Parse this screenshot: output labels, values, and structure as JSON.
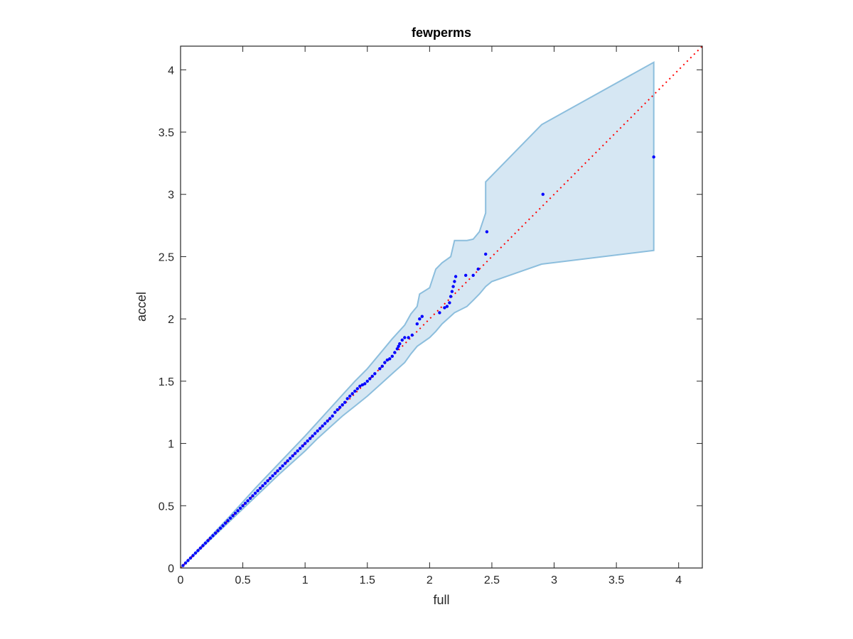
{
  "chart_data": {
    "type": "scatter",
    "title": "fewperms",
    "xlabel": "full",
    "ylabel": "accel",
    "xlim": [
      0,
      4.19
    ],
    "ylim": [
      0,
      4.19
    ],
    "xticks": [
      0,
      0.5,
      1,
      1.5,
      2,
      2.5,
      3,
      3.5,
      4
    ],
    "yticks": [
      0,
      0.5,
      1,
      1.5,
      2,
      2.5,
      3,
      3.5,
      4
    ],
    "xtick_labels": [
      "0",
      "0.5",
      "1",
      "1.5",
      "2",
      "2.5",
      "3",
      "3.5",
      "4"
    ],
    "ytick_labels": [
      "0",
      "0.5",
      "1",
      "1.5",
      "2",
      "2.5",
      "3",
      "3.5",
      "4"
    ],
    "grid": false,
    "reference_line": {
      "style": "dotted",
      "color": "#ff0000",
      "from": [
        0,
        0
      ],
      "to": [
        4.19,
        4.19
      ]
    },
    "points_color": "#0000ff",
    "band_fill": "#d6e7f3",
    "band_edge": "#8cbedd",
    "points": [
      [
        0.02,
        0.02
      ],
      [
        0.04,
        0.04
      ],
      [
        0.06,
        0.06
      ],
      [
        0.08,
        0.08
      ],
      [
        0.1,
        0.1
      ],
      [
        0.12,
        0.12
      ],
      [
        0.14,
        0.14
      ],
      [
        0.16,
        0.16
      ],
      [
        0.18,
        0.18
      ],
      [
        0.2,
        0.2
      ],
      [
        0.22,
        0.22
      ],
      [
        0.24,
        0.24
      ],
      [
        0.26,
        0.26
      ],
      [
        0.28,
        0.28
      ],
      [
        0.3,
        0.3
      ],
      [
        0.32,
        0.32
      ],
      [
        0.34,
        0.34
      ],
      [
        0.36,
        0.36
      ],
      [
        0.38,
        0.38
      ],
      [
        0.4,
        0.4
      ],
      [
        0.42,
        0.42
      ],
      [
        0.44,
        0.44
      ],
      [
        0.46,
        0.46
      ],
      [
        0.48,
        0.48
      ],
      [
        0.5,
        0.5
      ],
      [
        0.52,
        0.52
      ],
      [
        0.54,
        0.54
      ],
      [
        0.56,
        0.56
      ],
      [
        0.58,
        0.58
      ],
      [
        0.6,
        0.6
      ],
      [
        0.62,
        0.62
      ],
      [
        0.64,
        0.64
      ],
      [
        0.66,
        0.66
      ],
      [
        0.68,
        0.68
      ],
      [
        0.7,
        0.7
      ],
      [
        0.72,
        0.72
      ],
      [
        0.74,
        0.74
      ],
      [
        0.76,
        0.76
      ],
      [
        0.78,
        0.78
      ],
      [
        0.8,
        0.8
      ],
      [
        0.82,
        0.82
      ],
      [
        0.84,
        0.84
      ],
      [
        0.86,
        0.86
      ],
      [
        0.88,
        0.88
      ],
      [
        0.9,
        0.9
      ],
      [
        0.92,
        0.92
      ],
      [
        0.94,
        0.94
      ],
      [
        0.96,
        0.96
      ],
      [
        0.98,
        0.98
      ],
      [
        1.0,
        1.0
      ],
      [
        1.02,
        1.02
      ],
      [
        1.04,
        1.04
      ],
      [
        1.06,
        1.06
      ],
      [
        1.08,
        1.08
      ],
      [
        1.1,
        1.1
      ],
      [
        1.12,
        1.12
      ],
      [
        1.14,
        1.14
      ],
      [
        1.16,
        1.16
      ],
      [
        1.18,
        1.18
      ],
      [
        1.2,
        1.2
      ],
      [
        1.22,
        1.22
      ],
      [
        1.24,
        1.25
      ],
      [
        1.26,
        1.27
      ],
      [
        1.28,
        1.29
      ],
      [
        1.3,
        1.31
      ],
      [
        1.32,
        1.33
      ],
      [
        1.34,
        1.36
      ],
      [
        1.36,
        1.38
      ],
      [
        1.38,
        1.4
      ],
      [
        1.4,
        1.42
      ],
      [
        1.42,
        1.44
      ],
      [
        1.44,
        1.46
      ],
      [
        1.46,
        1.47
      ],
      [
        1.48,
        1.48
      ],
      [
        1.5,
        1.5
      ],
      [
        1.52,
        1.52
      ],
      [
        1.54,
        1.54
      ],
      [
        1.56,
        1.56
      ],
      [
        1.6,
        1.6
      ],
      [
        1.62,
        1.62
      ],
      [
        1.64,
        1.65
      ],
      [
        1.66,
        1.67
      ],
      [
        1.68,
        1.68
      ],
      [
        1.7,
        1.7
      ],
      [
        1.72,
        1.73
      ],
      [
        1.74,
        1.76
      ],
      [
        1.75,
        1.78
      ],
      [
        1.76,
        1.8
      ],
      [
        1.78,
        1.83
      ],
      [
        1.8,
        1.85
      ],
      [
        1.83,
        1.85
      ],
      [
        1.86,
        1.87
      ],
      [
        1.9,
        1.96
      ],
      [
        1.92,
        2.0
      ],
      [
        1.94,
        2.02
      ],
      [
        2.08,
        2.05
      ],
      [
        2.12,
        2.09
      ],
      [
        2.14,
        2.1
      ],
      [
        2.16,
        2.13
      ],
      [
        2.17,
        2.18
      ],
      [
        2.18,
        2.22
      ],
      [
        2.19,
        2.26
      ],
      [
        2.2,
        2.3
      ],
      [
        2.21,
        2.34
      ],
      [
        2.29,
        2.35
      ],
      [
        2.35,
        2.35
      ],
      [
        2.39,
        2.4
      ],
      [
        2.45,
        2.52
      ],
      [
        2.46,
        2.7
      ],
      [
        2.91,
        3.0
      ],
      [
        3.8,
        3.3
      ]
    ],
    "band_upper": [
      [
        0.0,
        0.0
      ],
      [
        0.2,
        0.21
      ],
      [
        0.4,
        0.42
      ],
      [
        0.6,
        0.64
      ],
      [
        0.8,
        0.85
      ],
      [
        1.0,
        1.06
      ],
      [
        1.1,
        1.17
      ],
      [
        1.2,
        1.28
      ],
      [
        1.3,
        1.39
      ],
      [
        1.4,
        1.5
      ],
      [
        1.5,
        1.6
      ],
      [
        1.6,
        1.72
      ],
      [
        1.7,
        1.84
      ],
      [
        1.8,
        1.95
      ],
      [
        1.85,
        2.04
      ],
      [
        1.9,
        2.1
      ],
      [
        1.92,
        2.2
      ],
      [
        2.0,
        2.25
      ],
      [
        2.05,
        2.4
      ],
      [
        2.1,
        2.45
      ],
      [
        2.17,
        2.5
      ],
      [
        2.2,
        2.63
      ],
      [
        2.3,
        2.63
      ],
      [
        2.35,
        2.64
      ],
      [
        2.4,
        2.7
      ],
      [
        2.45,
        2.85
      ],
      [
        2.45,
        3.1
      ],
      [
        2.9,
        3.56
      ],
      [
        3.8,
        4.06
      ]
    ],
    "band_lower": [
      [
        0.0,
        0.0
      ],
      [
        0.2,
        0.19
      ],
      [
        0.4,
        0.38
      ],
      [
        0.6,
        0.57
      ],
      [
        0.8,
        0.76
      ],
      [
        1.0,
        0.94
      ],
      [
        1.1,
        1.04
      ],
      [
        1.2,
        1.13
      ],
      [
        1.3,
        1.22
      ],
      [
        1.4,
        1.3
      ],
      [
        1.5,
        1.38
      ],
      [
        1.6,
        1.47
      ],
      [
        1.7,
        1.56
      ],
      [
        1.8,
        1.65
      ],
      [
        1.85,
        1.72
      ],
      [
        1.9,
        1.78
      ],
      [
        2.0,
        1.85
      ],
      [
        2.05,
        1.9
      ],
      [
        2.1,
        1.96
      ],
      [
        2.2,
        2.05
      ],
      [
        2.3,
        2.1
      ],
      [
        2.35,
        2.15
      ],
      [
        2.4,
        2.2
      ],
      [
        2.45,
        2.26
      ],
      [
        2.5,
        2.3
      ],
      [
        2.9,
        2.44
      ],
      [
        3.8,
        2.55
      ]
    ]
  }
}
